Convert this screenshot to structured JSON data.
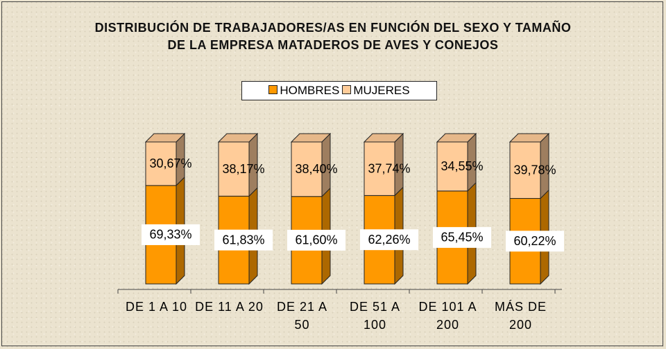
{
  "chart_data": {
    "type": "bar",
    "stacked": true,
    "three_d": true,
    "title": "DISTRIBUCIÓN DE TRABAJADORES/AS EN FUNCIÓN DEL SEXO Y TAMAÑO DE LA EMPRESA MATADEROS DE AVES Y CONEJOS",
    "categories": [
      "DE 1 A 10",
      "DE 11 A 20",
      "DE 21 A 50",
      "DE 51 A 100",
      "DE 101 A 200",
      "MÁS DE 200"
    ],
    "legend": "top",
    "series": [
      {
        "name": "HOMBRES",
        "color": "#ff9900",
        "values": [
          69.33,
          61.83,
          61.6,
          62.26,
          65.45,
          60.22
        ],
        "value_labels": [
          "69,33%",
          "61,83%",
          "61,60%",
          "62,26%",
          "65,45%",
          "60,22%"
        ]
      },
      {
        "name": "MUJERES",
        "color": "#ffcc99",
        "values": [
          30.67,
          38.17,
          38.4,
          37.74,
          34.55,
          39.78
        ],
        "value_labels": [
          "30,67%",
          "38,17%",
          "38,40%",
          "37,74%",
          "34,55%",
          "39,78%"
        ]
      }
    ]
  }
}
